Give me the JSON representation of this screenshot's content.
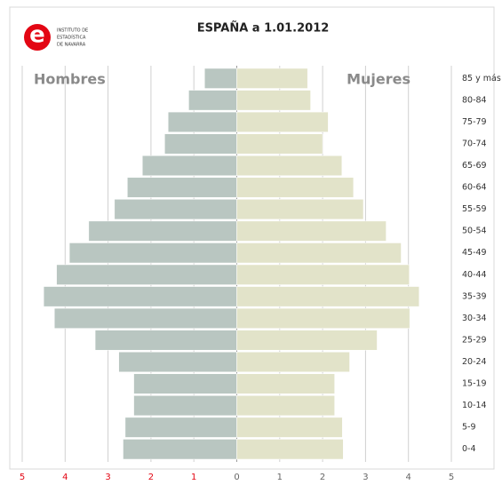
{
  "chart_data": {
    "type": "pyramid",
    "title": "ESPAÑA a 1.01.2012",
    "logo": {
      "letter": "e",
      "lines": [
        "INSTITUTO DE",
        "ESTADÍSTICA",
        "DE NAVARRA"
      ]
    },
    "categories": [
      "85 y más",
      "80-84",
      "75-79",
      "70-74",
      "65-69",
      "60-64",
      "55-59",
      "50-54",
      "45-49",
      "40-44",
      "35-39",
      "30-34",
      "25-29",
      "20-24",
      "15-19",
      "10-14",
      "5-9",
      "0-4"
    ],
    "series": [
      {
        "name": "Hombres",
        "color": "#b9c6c1",
        "side": "left",
        "values": [
          0.75,
          1.12,
          1.6,
          1.68,
          2.2,
          2.55,
          2.85,
          3.45,
          3.9,
          4.2,
          4.5,
          4.25,
          3.3,
          2.75,
          2.4,
          2.4,
          2.6,
          2.65
        ]
      },
      {
        "name": "Mujeres",
        "color": "#e2e3c9",
        "side": "right",
        "values": [
          1.65,
          1.72,
          2.13,
          2.0,
          2.45,
          2.72,
          2.95,
          3.48,
          3.83,
          4.02,
          4.25,
          4.03,
          3.27,
          2.63,
          2.28,
          2.28,
          2.46,
          2.48
        ]
      }
    ],
    "xlim": [
      -5,
      5
    ],
    "xticks": [
      {
        "value": -5,
        "label": "5"
      },
      {
        "value": -4,
        "label": "4"
      },
      {
        "value": -3,
        "label": "3"
      },
      {
        "value": -2,
        "label": "2"
      },
      {
        "value": -1,
        "label": "1"
      },
      0,
      1,
      2,
      3,
      4,
      5
    ],
    "grid": true
  }
}
